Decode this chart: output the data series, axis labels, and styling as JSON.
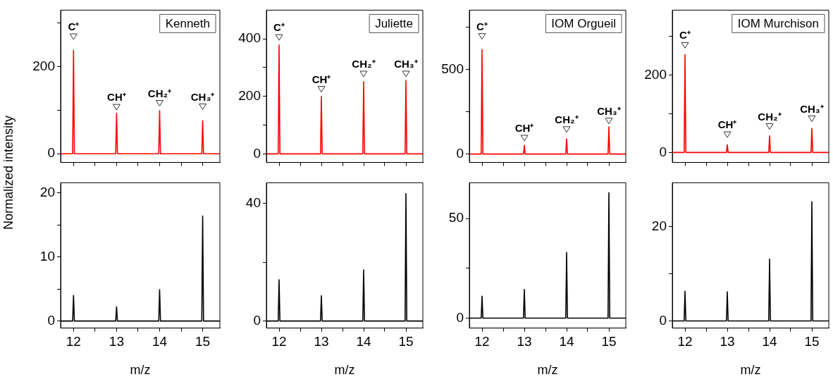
{
  "chart_data": [
    {
      "type": "line",
      "title": "Kenneth",
      "ylabel": "Normalized intensity",
      "tick_labels": "y",
      "grid": false,
      "color": "#ff0000",
      "xlim": [
        11.7,
        15.4
      ],
      "xticks": [
        12,
        {
          "value": 12.5,
          "label": null
        },
        13,
        {
          "value": 13.5,
          "label": null
        },
        14,
        {
          "value": 14.5,
          "label": null
        },
        15
      ],
      "ylim": [
        -20,
        330
      ],
      "yticks": [
        0,
        {
          "value": 100,
          "label": null
        },
        200,
        {
          "value": 300,
          "label": null
        }
      ],
      "x": [
        11.7,
        11.98,
        12,
        12.02,
        12.98,
        13,
        13.02,
        13.98,
        14,
        14.02,
        14.98,
        15,
        15.02,
        15.4
      ],
      "values": [
        0,
        0,
        238,
        0,
        0,
        93,
        0,
        0,
        99,
        0,
        0,
        76,
        0,
        0
      ],
      "annotations": [
        {
          "text": "C⁺",
          "x": 12,
          "y": 269
        },
        {
          "text": "CH⁺",
          "x": 13,
          "y": 107
        },
        {
          "text": "CH₂⁺",
          "x": 14,
          "y": 116
        },
        {
          "text": "CH₃⁺",
          "x": 15,
          "y": 108
        }
      ]
    },
    {
      "type": "line",
      "title": "Juliette",
      "tick_labels": "y",
      "grid": false,
      "color": "#ff0000",
      "xlim": [
        11.7,
        15.4
      ],
      "xticks": [
        12,
        {
          "value": 12.5,
          "label": null
        },
        13,
        {
          "value": 13.5,
          "label": null
        },
        14,
        {
          "value": 14.5,
          "label": null
        },
        15
      ],
      "ylim": [
        -30,
        500
      ],
      "yticks": [
        0,
        {
          "value": 100,
          "label": null
        },
        200,
        {
          "value": 300,
          "label": null
        },
        400
      ],
      "x": [
        11.7,
        11.98,
        12,
        12.02,
        12.98,
        13,
        13.02,
        13.98,
        14,
        14.02,
        14.98,
        15,
        15.02,
        15.4
      ],
      "values": [
        0,
        0,
        379,
        0,
        0,
        200,
        0,
        0,
        251,
        0,
        0,
        255,
        0,
        0
      ],
      "annotations": [
        {
          "text": "C⁺",
          "x": 12,
          "y": 405
        },
        {
          "text": "CH⁺",
          "x": 13,
          "y": 225
        },
        {
          "text": "CH₂⁺",
          "x": 14,
          "y": 278
        },
        {
          "text": "CH₃⁺",
          "x": 15,
          "y": 278
        }
      ]
    },
    {
      "type": "line",
      "title": "IOM Orgueil",
      "tick_labels": "y",
      "grid": false,
      "color": "#ff0000",
      "xlim": [
        11.7,
        15.4
      ],
      "xticks": [
        12,
        {
          "value": 12.5,
          "label": null
        },
        13,
        {
          "value": 13.5,
          "label": null
        },
        14,
        {
          "value": 14.5,
          "label": null
        },
        15
      ],
      "ylim": [
        -50,
        850
      ],
      "yticks": [
        0,
        {
          "value": 250,
          "label": null
        },
        500,
        {
          "value": 750,
          "label": null
        }
      ],
      "x": [
        11.7,
        11.98,
        12,
        12.02,
        12.98,
        13,
        13.02,
        13.98,
        14,
        14.02,
        14.98,
        15,
        15.02,
        15.4
      ],
      "values": [
        0,
        0,
        617,
        0,
        0,
        51,
        0,
        0,
        90,
        0,
        0,
        160,
        0,
        0
      ],
      "annotations": [
        {
          "text": "C⁺",
          "x": 12,
          "y": 695
        },
        {
          "text": "CH⁺",
          "x": 13,
          "y": 94
        },
        {
          "text": "CH₂⁺",
          "x": 14,
          "y": 145
        },
        {
          "text": "CH₃⁺",
          "x": 15,
          "y": 195
        }
      ]
    },
    {
      "type": "line",
      "title": "IOM Murchison",
      "tick_labels": "y",
      "grid": false,
      "color": "#ff0000",
      "xlim": [
        11.7,
        15.4
      ],
      "xticks": [
        12,
        {
          "value": 12.5,
          "label": null
        },
        13,
        {
          "value": 13.5,
          "label": null
        },
        14,
        {
          "value": 14.5,
          "label": null
        },
        15
      ],
      "ylim": [
        -26,
        368
      ],
      "yticks": [
        0,
        {
          "value": 100,
          "label": null
        },
        200,
        {
          "value": 300,
          "label": null
        }
      ],
      "x": [
        11.7,
        11.98,
        12,
        12.02,
        12.98,
        13,
        13.02,
        13.98,
        14,
        14.02,
        14.98,
        15,
        15.02,
        15.4
      ],
      "values": [
        0,
        0,
        253,
        0,
        0,
        20,
        0,
        0,
        43,
        0,
        0,
        62,
        0,
        0
      ],
      "annotations": [
        {
          "text": "C⁺",
          "x": 12,
          "y": 277
        },
        {
          "text": "CH⁺",
          "x": 13,
          "y": 46
        },
        {
          "text": "CH₂⁺",
          "x": 14,
          "y": 67
        },
        {
          "text": "CH₃⁺",
          "x": 15,
          "y": 87
        }
      ]
    },
    {
      "type": "line",
      "xlabel": "m/z",
      "grid": false,
      "color": "#000000",
      "xlim": [
        11.7,
        15.4
      ],
      "xticks": [
        12,
        {
          "value": 12.5,
          "label": null
        },
        13,
        {
          "value": 13.5,
          "label": null
        },
        14,
        {
          "value": 14.5,
          "label": null
        },
        15
      ],
      "ylim": [
        -1.1,
        21.6
      ],
      "yticks": [
        0,
        {
          "value": 5,
          "label": null
        },
        10,
        {
          "value": 15,
          "label": null
        },
        20
      ],
      "x": [
        11.7,
        11.98,
        12,
        12.02,
        12.98,
        13,
        13.02,
        13.98,
        14,
        14.02,
        14.98,
        15,
        15.02,
        15.4
      ],
      "values": [
        0,
        0,
        4,
        0,
        0,
        2.2,
        0,
        0,
        4.9,
        0,
        0,
        16.4,
        0,
        0
      ]
    },
    {
      "type": "line",
      "xlabel": "m/z",
      "grid": false,
      "color": "#000000",
      "xlim": [
        11.7,
        15.4
      ],
      "xticks": [
        12,
        {
          "value": 12.5,
          "label": null
        },
        13,
        {
          "value": 13.5,
          "label": null
        },
        14,
        {
          "value": 14.5,
          "label": null
        },
        15
      ],
      "ylim": [
        -2.4,
        47
      ],
      "yticks": [
        0,
        {
          "value": 20,
          "label": null
        },
        40
      ],
      "x": [
        11.7,
        11.98,
        12,
        12.02,
        12.98,
        13,
        13.02,
        13.98,
        14,
        14.02,
        14.98,
        15,
        15.02,
        15.4
      ],
      "values": [
        0,
        0,
        14,
        0,
        0,
        8.6,
        0,
        0,
        17.4,
        0,
        0,
        43.3,
        0,
        0
      ]
    },
    {
      "type": "line",
      "xlabel": "m/z",
      "grid": false,
      "color": "#000000",
      "xlim": [
        11.7,
        15.4
      ],
      "xticks": [
        12,
        {
          "value": 12.5,
          "label": null
        },
        13,
        {
          "value": 13.5,
          "label": null
        },
        14,
        {
          "value": 14.5,
          "label": null
        },
        15
      ],
      "ylim": [
        -5,
        68
      ],
      "yticks": [
        0,
        {
          "value": 25,
          "label": null
        },
        50
      ],
      "x": [
        11.7,
        11.98,
        12,
        12.02,
        12.98,
        13,
        13.02,
        13.98,
        14,
        14.02,
        14.98,
        15,
        15.02,
        15.4
      ],
      "values": [
        0,
        0,
        11,
        0,
        0,
        14.4,
        0,
        0,
        33,
        0,
        0,
        63,
        0,
        0
      ]
    },
    {
      "type": "line",
      "xlabel": "m/z",
      "grid": false,
      "color": "#000000",
      "xlim": [
        11.7,
        15.4
      ],
      "xticks": [
        12,
        {
          "value": 12.5,
          "label": null
        },
        13,
        {
          "value": 13.5,
          "label": null
        },
        14,
        {
          "value": 14.5,
          "label": null
        },
        15
      ],
      "ylim": [
        -1.5,
        29.3
      ],
      "yticks": [
        0,
        {
          "value": 10,
          "label": null
        },
        20
      ],
      "x": [
        11.7,
        11.98,
        12,
        12.02,
        12.98,
        13,
        13.02,
        13.98,
        14,
        14.02,
        14.98,
        15,
        15.02,
        15.4
      ],
      "values": [
        0,
        0,
        6.3,
        0,
        0,
        6.2,
        0,
        0,
        13.1,
        0,
        0,
        25.3,
        0,
        0
      ]
    }
  ]
}
